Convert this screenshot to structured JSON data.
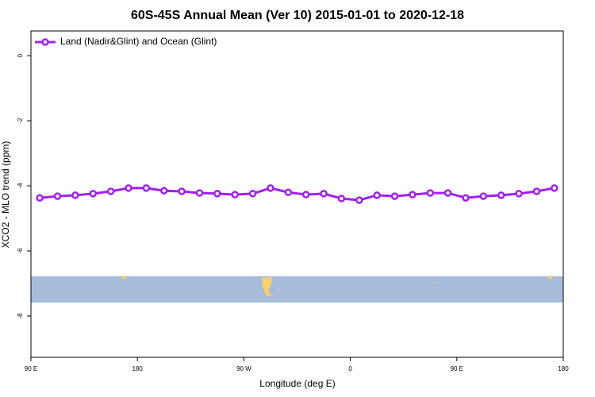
{
  "chart_data": {
    "type": "line",
    "title": "60S-45S Annual Mean (Ver 10)   2015-01-01 to 2020-12-18",
    "x_label": "Longitude (deg E)",
    "y_label": "XCO2 - MLO trend (ppm)",
    "x": [
      97.5,
      112.5,
      127.5,
      142.5,
      157.5,
      172.5,
      187.5,
      202.5,
      217.5,
      232.5,
      247.5,
      262.5,
      277.5,
      292.5,
      307.5,
      322.5,
      337.5,
      352.5,
      367.5,
      382.5,
      397.5,
      412.5,
      427.5,
      442.5,
      457.5,
      472.5,
      487.5,
      502.5,
      517.5,
      532.5
    ],
    "series": [
      {
        "name": "Land (Nadir&Glint) and Ocean (Glint)",
        "color": "#a020f0",
        "values": [
          -4.37,
          -4.32,
          -4.29,
          -4.24,
          -4.17,
          -4.07,
          -4.07,
          -4.15,
          -4.17,
          -4.22,
          -4.24,
          -4.27,
          -4.24,
          -4.07,
          -4.2,
          -4.27,
          -4.24,
          -4.39,
          -4.44,
          -4.29,
          -4.32,
          -4.27,
          -4.22,
          -4.22,
          -4.37,
          -4.32,
          -4.29,
          -4.24,
          -4.17,
          -4.07
        ]
      }
    ],
    "xlim": [
      90,
      540
    ],
    "xticks": [
      {
        "value": 90,
        "label": "90 E"
      },
      {
        "value": 180,
        "label": "180"
      },
      {
        "value": 270,
        "label": "90 W"
      },
      {
        "value": 360,
        "label": "0"
      },
      {
        "value": 450,
        "label": "90 E"
      },
      {
        "value": 540,
        "label": "180"
      }
    ],
    "ylim": [
      -9.27,
      0.76
    ],
    "yticks": [
      0,
      -2,
      -4,
      -6,
      -8
    ],
    "legend": "top-left"
  }
}
